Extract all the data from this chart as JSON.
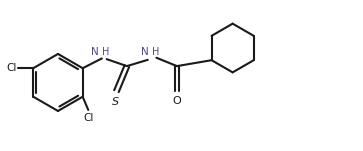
{
  "bg_color": "#ffffff",
  "line_color": "#1a1a1a",
  "label_color_NH": "#4a4a8a",
  "label_color_S": "#1a1a1a",
  "label_color_O": "#1a1a1a",
  "label_color_Cl": "#1a1a1a",
  "bond_lw": 1.5,
  "figsize": [
    3.63,
    1.51
  ],
  "dpi": 100,
  "xlim": [
    0.0,
    10.2
  ],
  "ylim": [
    0.5,
    4.8
  ]
}
